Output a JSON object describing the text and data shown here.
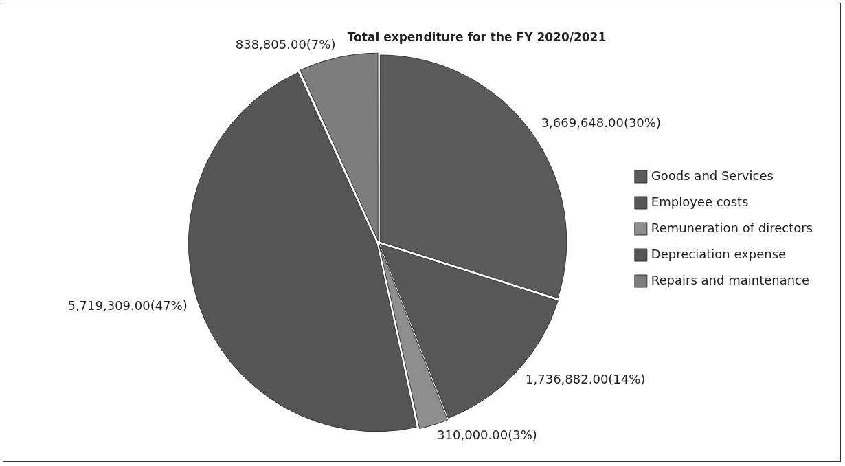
{
  "chart_data": {
    "type": "pie",
    "title": "Total expenditure for the FY 2020/2021",
    "categories": [
      "Goods and Services",
      "Employee costs",
      "Remuneration of directors",
      "Depreciation expense",
      "Repairs and maintenance"
    ],
    "values": [
      3669648,
      1736882,
      310000,
      5719309,
      838805
    ],
    "colors": [
      "#5b5b5b",
      "#575757",
      "#8e8e8e",
      "#555555",
      "#7d7d7d"
    ],
    "value_labels": [
      "3,669,648.00(30%)",
      "1,736,882.00(14%)",
      "310,000.00(3%)",
      "5,719,309.00(47%)",
      "838,805.00(7%)"
    ],
    "legend": "right"
  }
}
